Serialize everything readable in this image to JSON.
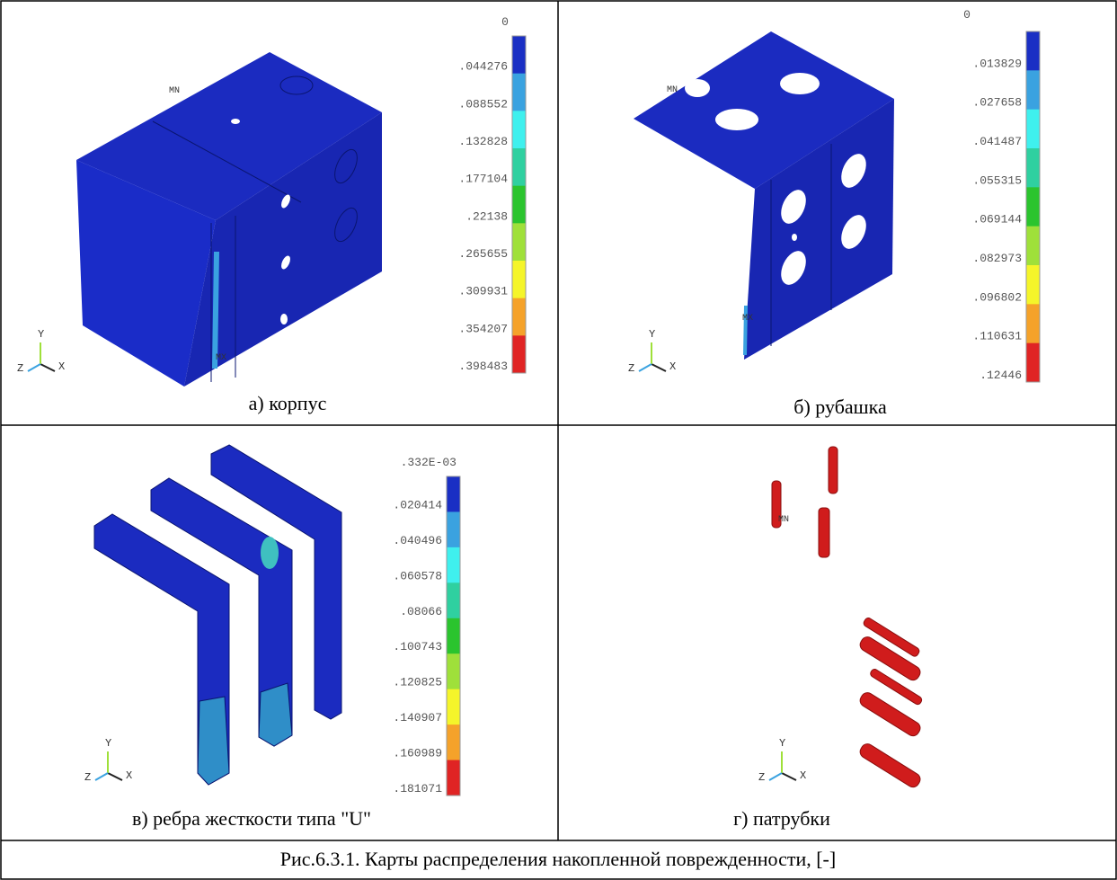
{
  "panels": [
    {
      "caption": "а) корпус",
      "legend": {
        "top": "0",
        "labels": [
          ".044276",
          ".088552",
          ".132828",
          ".177104",
          ".22138",
          ".265655",
          ".309931",
          ".354207",
          ".398483"
        ]
      },
      "marks": [
        "MN",
        "MX"
      ]
    },
    {
      "caption": "б) рубашка",
      "legend": {
        "top": "0",
        "labels": [
          ".013829",
          ".027658",
          ".041487",
          ".055315",
          ".069144",
          ".082973",
          ".096802",
          ".110631",
          ".12446"
        ]
      },
      "marks": [
        "MN",
        "MX"
      ]
    },
    {
      "caption": "в) ребра жесткости типа \"U\"",
      "legend": {
        "top": ".332E-03",
        "labels": [
          ".020414",
          ".040496",
          ".060578",
          ".08066",
          ".100743",
          ".120825",
          ".140907",
          ".160989",
          ".181071"
        ]
      }
    },
    {
      "caption": "г) патрубки",
      "marks": [
        "MN"
      ]
    }
  ],
  "legend_colors": [
    "#1a2fc4",
    "#3aa2e0",
    "#3ff0ee",
    "#2fd0a0",
    "#2bc42e",
    "#9fe03a",
    "#f5f52a",
    "#f5a22a",
    "#e02424"
  ],
  "axis": {
    "x": "X",
    "y": "Y",
    "z": "Z"
  },
  "figure_caption": "Рис.6.3.1. Карты распределения накопленной поврежденности, [-]"
}
